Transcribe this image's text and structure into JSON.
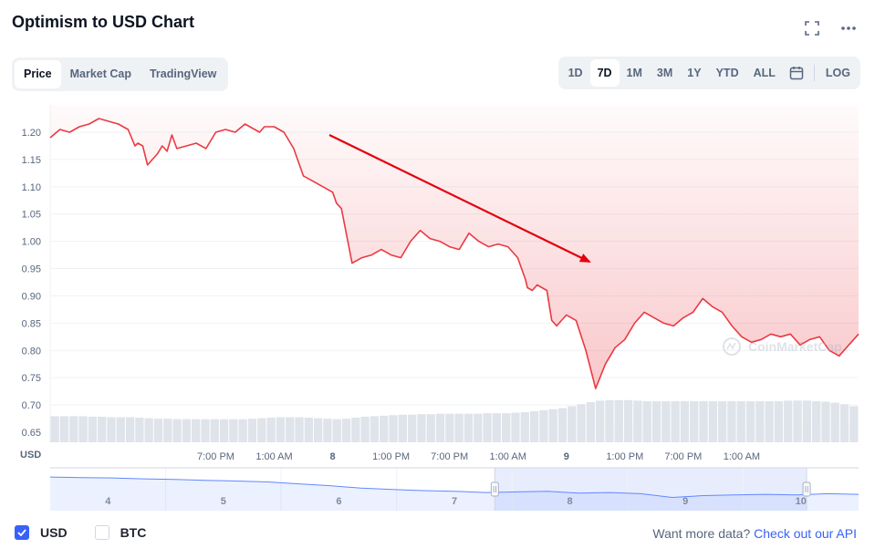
{
  "header": {
    "title": "Optimism to USD Chart",
    "icons": [
      "fullscreen-icon",
      "more-icon"
    ]
  },
  "view_tabs": [
    {
      "label": "Price",
      "active": true
    },
    {
      "label": "Market Cap",
      "active": false
    },
    {
      "label": "TradingView",
      "active": false
    }
  ],
  "range_buttons": [
    {
      "label": "1D",
      "active": false
    },
    {
      "label": "7D",
      "active": true
    },
    {
      "label": "1M",
      "active": false
    },
    {
      "label": "3M",
      "active": false
    },
    {
      "label": "1Y",
      "active": false
    },
    {
      "label": "YTD",
      "active": false
    },
    {
      "label": "ALL",
      "active": false
    }
  ],
  "log_label": "LOG",
  "watermark": "CoinMarketCap",
  "colors": {
    "line": "#ea3943",
    "accent": "#3861fb",
    "volume": "#dfe3ea",
    "navigator_line": "#6188ff"
  },
  "chart_data": {
    "type": "line",
    "title": "Optimism to USD Chart",
    "currency_label": "USD",
    "y_ticks": [
      "1.20",
      "1.15",
      "1.10",
      "1.05",
      "1.00",
      "0.95",
      "0.90",
      "0.85",
      "0.80",
      "0.75",
      "0.70",
      "0.65"
    ],
    "ylim": [
      0.65,
      1.2
    ],
    "x_ticks": [
      "7:00 PM",
      "1:00 AM",
      "8",
      "1:00 PM",
      "7:00 PM",
      "1:00 AM",
      "9",
      "1:00 PM",
      "7:00 PM",
      "1:00 AM"
    ],
    "x_tick_hours": [
      17,
      23,
      29,
      35,
      41,
      47,
      53,
      59,
      65,
      71
    ],
    "x_range_hours": [
      0,
      83
    ],
    "series": [
      {
        "hours": [
          0,
          1,
          2,
          3,
          4,
          5,
          6,
          7,
          8,
          8.7,
          9,
          9.5,
          10,
          11,
          11.5,
          12,
          12.5,
          13,
          14,
          15,
          16,
          17,
          18,
          19,
          20,
          21,
          21.5,
          22,
          23,
          24,
          25,
          26,
          27,
          28,
          29,
          29.4,
          29.9,
          31,
          32,
          33,
          34,
          35,
          36,
          37,
          38,
          39,
          40,
          41,
          42,
          43,
          44,
          45,
          46,
          47,
          48,
          48.8,
          49,
          49.5,
          50,
          51,
          51.5,
          52,
          53,
          53.5,
          54,
          55,
          56,
          57,
          58,
          59,
          60,
          61,
          62,
          63,
          64,
          65,
          66,
          67,
          68,
          69,
          70,
          71,
          72,
          73,
          74,
          75,
          76,
          77,
          78,
          79,
          80,
          81,
          82,
          83
        ],
        "values": [
          1.19,
          1.205,
          1.2,
          1.21,
          1.215,
          1.225,
          1.22,
          1.215,
          1.205,
          1.175,
          1.18,
          1.175,
          1.14,
          1.16,
          1.175,
          1.165,
          1.195,
          1.17,
          1.175,
          1.18,
          1.17,
          1.2,
          1.205,
          1.2,
          1.215,
          1.205,
          1.2,
          1.21,
          1.21,
          1.2,
          1.17,
          1.12,
          1.11,
          1.1,
          1.09,
          1.07,
          1.06,
          0.96,
          0.97,
          0.975,
          0.985,
          0.975,
          0.97,
          1.0,
          1.02,
          1.005,
          1.0,
          0.99,
          0.985,
          1.015,
          1.0,
          0.99,
          0.995,
          0.99,
          0.97,
          0.93,
          0.915,
          0.91,
          0.92,
          0.91,
          0.855,
          0.845,
          0.865,
          0.86,
          0.855,
          0.8,
          0.73,
          0.775,
          0.805,
          0.82,
          0.85,
          0.87,
          0.86,
          0.85,
          0.845,
          0.86,
          0.87,
          0.895,
          0.88,
          0.87,
          0.845,
          0.825,
          0.815,
          0.82,
          0.83,
          0.825,
          0.83,
          0.81,
          0.82,
          0.825,
          0.8,
          0.79,
          0.81,
          0.83
        ]
      }
    ],
    "volume": [
      0.52,
      0.52,
      0.52,
      0.52,
      0.51,
      0.51,
      0.5,
      0.5,
      0.5,
      0.49,
      0.48,
      0.47,
      0.47,
      0.46,
      0.46,
      0.46,
      0.46,
      0.46,
      0.46,
      0.46,
      0.46,
      0.47,
      0.48,
      0.49,
      0.5,
      0.5,
      0.5,
      0.49,
      0.48,
      0.47,
      0.46,
      0.47,
      0.49,
      0.51,
      0.52,
      0.53,
      0.54,
      0.55,
      0.55,
      0.56,
      0.56,
      0.57,
      0.57,
      0.57,
      0.57,
      0.57,
      0.58,
      0.58,
      0.58,
      0.59,
      0.6,
      0.62,
      0.64,
      0.66,
      0.68,
      0.72,
      0.76,
      0.8,
      0.83,
      0.84,
      0.84,
      0.84,
      0.83,
      0.82,
      0.82,
      0.82,
      0.82,
      0.82,
      0.82,
      0.82,
      0.82,
      0.82,
      0.82,
      0.82,
      0.82,
      0.82,
      0.82,
      0.82,
      0.83,
      0.83,
      0.83,
      0.82,
      0.81,
      0.79,
      0.76,
      0.72
    ]
  },
  "navigator": {
    "labels": [
      "4",
      "5",
      "6",
      "7",
      "8",
      "9",
      "10"
    ],
    "label_days": [
      0.5,
      1.5,
      2.5,
      3.5,
      4.5,
      5.5,
      6.5
    ],
    "values": [
      0.88,
      0.86,
      0.85,
      0.82,
      0.8,
      0.77,
      0.75,
      0.72,
      0.66,
      0.6,
      0.52,
      0.48,
      0.44,
      0.42,
      0.38,
      0.4,
      0.42,
      0.36,
      0.38,
      0.34,
      0.22,
      0.28,
      0.3,
      0.32,
      0.3,
      0.34,
      0.32
    ],
    "selected_days": [
      3.85,
      6.55
    ]
  },
  "currencies": [
    {
      "label": "USD",
      "checked": true
    },
    {
      "label": "BTC",
      "checked": false
    }
  ],
  "api": {
    "prefix": "Want more data?",
    "link": "Check out our API"
  }
}
